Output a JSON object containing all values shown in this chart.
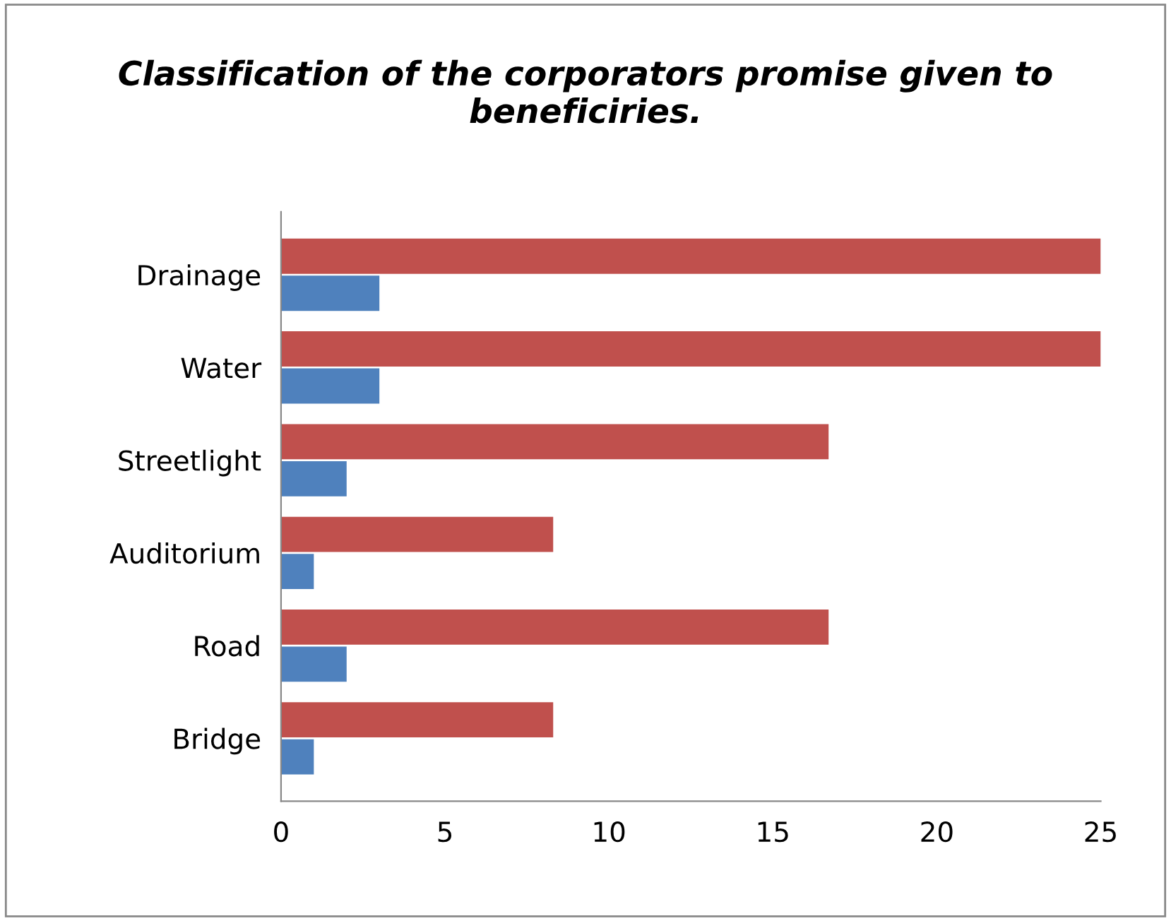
{
  "chart_data": {
    "type": "bar",
    "orientation": "horizontal",
    "title": "Classification of the corporators promise given to beneficiries.",
    "categories": [
      "Drainage",
      "Water",
      "Streetlight",
      "Auditorium",
      "Road",
      "Bridge"
    ],
    "series": [
      {
        "color": "#4f81bd",
        "values": [
          3,
          3,
          2,
          1,
          2,
          1
        ]
      },
      {
        "color": "#c0504d",
        "values": [
          25,
          25,
          16.7,
          8.3,
          16.7,
          8.3
        ]
      }
    ],
    "xlim": [
      0,
      25
    ],
    "xticks": [
      0,
      5,
      10,
      15,
      20,
      25
    ],
    "grid": false,
    "legend": false
  }
}
